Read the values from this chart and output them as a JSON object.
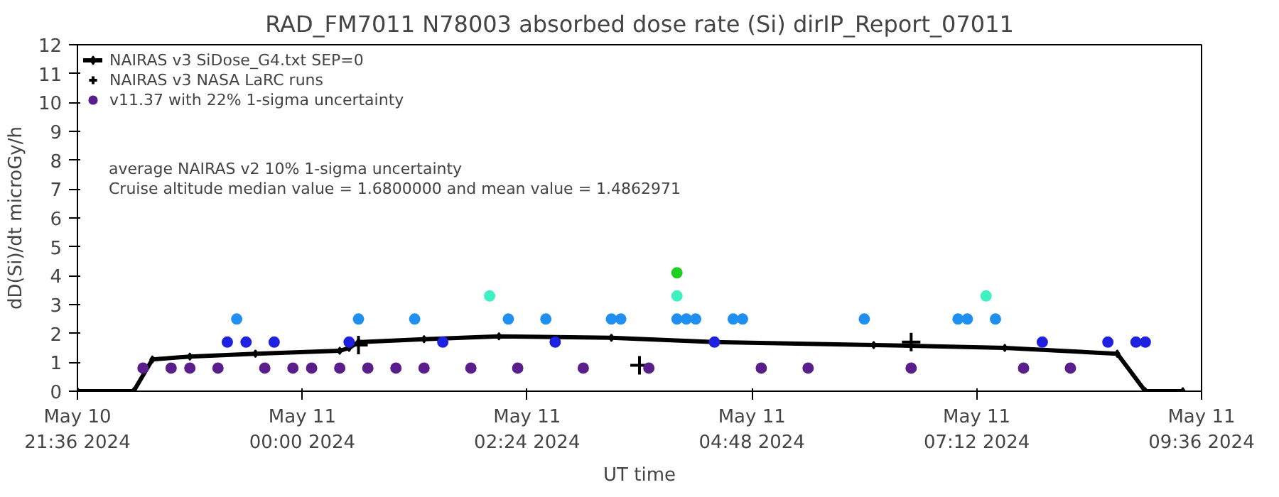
{
  "chart_data": {
    "type": "scatter",
    "title": "RAD_FM7011 N78003 absorbed dose rate (Si) dirIP_Report_07011",
    "xlabel": "UT time",
    "ylabel": "dD(Si)/dt microGy/h",
    "annotations": [
      "average NAIRAS v2 10% 1-sigma uncertainty",
      "Cruise altitude median value = 1.6800000 and mean value = 1.4862971"
    ],
    "xlim": [
      "2024-05-10T21:36",
      "2024-05-11T09:36"
    ],
    "xticks": [
      {
        "value": "2024-05-10T21:36",
        "label": "May 10\n21:36 2024"
      },
      {
        "value": "2024-05-11T00:00",
        "label": "May 11\n00:00 2024"
      },
      {
        "value": "2024-05-11T02:24",
        "label": "May 11\n02:24 2024"
      },
      {
        "value": "2024-05-11T04:48",
        "label": "May 11\n04:48 2024"
      },
      {
        "value": "2024-05-11T07:12",
        "label": "May 11\n07:12 2024"
      },
      {
        "value": "2024-05-11T09:36",
        "label": "May 11\n09:36 2024"
      }
    ],
    "ylim": [
      0,
      12
    ],
    "yticks": [
      0,
      1,
      2,
      3,
      4,
      5,
      6,
      7,
      8,
      9,
      10,
      11,
      12
    ],
    "grid": false,
    "legend": "top left",
    "series": [
      {
        "name": "NAIRAS v3 SiDose_G4.txt SEP=0",
        "type": "line",
        "marker": "diamond",
        "color": "#000000",
        "x": [
          "2024-05-10T21:36",
          "2024-05-10T22:12",
          "2024-05-10T22:24",
          "2024-05-10T22:48",
          "2024-05-10T23:30",
          "2024-05-11T00:24",
          "2024-05-11T00:30",
          "2024-05-11T00:36",
          "2024-05-11T01:18",
          "2024-05-11T02:06",
          "2024-05-11T03:18",
          "2024-05-11T04:24",
          "2024-05-11T06:06",
          "2024-05-11T07:30",
          "2024-05-11T08:42",
          "2024-05-11T09:00",
          "2024-05-11T09:24"
        ],
        "values": [
          0,
          0,
          1.1,
          1.2,
          1.3,
          1.4,
          1.5,
          1.7,
          1.8,
          1.9,
          1.85,
          1.7,
          1.6,
          1.5,
          1.3,
          0,
          0
        ]
      },
      {
        "name": "NAIRAS v3 NASA LaRC runs",
        "marker": "cross",
        "color": "#000000",
        "x": [
          "2024-05-11T00:36",
          "2024-05-11T03:36",
          "2024-05-11T06:30"
        ],
        "values": [
          1.6,
          0.9,
          1.7
        ]
      },
      {
        "name": "v11.37 with 22% 1-sigma uncertainty",
        "marker": "circle",
        "x": [
          "2024-05-10T22:18",
          "2024-05-10T22:36",
          "2024-05-10T22:48",
          "2024-05-10T23:06",
          "2024-05-10T23:12",
          "2024-05-10T23:18",
          "2024-05-10T23:24",
          "2024-05-10T23:36",
          "2024-05-10T23:42",
          "2024-05-10T23:54",
          "2024-05-11T00:06",
          "2024-05-11T00:24",
          "2024-05-11T00:30",
          "2024-05-11T00:36",
          "2024-05-11T00:42",
          "2024-05-11T01:00",
          "2024-05-11T01:12",
          "2024-05-11T01:18",
          "2024-05-11T01:30",
          "2024-05-11T01:48",
          "2024-05-11T02:00",
          "2024-05-11T02:12",
          "2024-05-11T02:18",
          "2024-05-11T02:36",
          "2024-05-11T02:42",
          "2024-05-11T03:00",
          "2024-05-11T03:18",
          "2024-05-11T03:24",
          "2024-05-11T03:42",
          "2024-05-11T04:00",
          "2024-05-11T04:00",
          "2024-05-11T04:00",
          "2024-05-11T04:06",
          "2024-05-11T04:12",
          "2024-05-11T04:24",
          "2024-05-11T04:36",
          "2024-05-11T04:42",
          "2024-05-11T04:54",
          "2024-05-11T05:24",
          "2024-05-11T06:00",
          "2024-05-11T06:30",
          "2024-05-11T07:00",
          "2024-05-11T07:06",
          "2024-05-11T07:18",
          "2024-05-11T07:24",
          "2024-05-11T07:42",
          "2024-05-11T07:54",
          "2024-05-11T08:12",
          "2024-05-11T08:36",
          "2024-05-11T08:54",
          "2024-05-11T09:00"
        ],
        "values": [
          0.8,
          0.8,
          0.8,
          0.8,
          1.7,
          2.5,
          1.7,
          0.8,
          1.7,
          0.8,
          0.8,
          0.8,
          1.7,
          2.5,
          0.8,
          0.8,
          2.5,
          0.8,
          1.7,
          0.8,
          3.3,
          2.5,
          0.8,
          2.5,
          1.7,
          0.8,
          2.5,
          2.5,
          0.8,
          2.5,
          3.3,
          4.1,
          2.5,
          2.5,
          1.7,
          2.5,
          2.5,
          0.8,
          0.8,
          2.5,
          0.8,
          2.5,
          2.5,
          3.3,
          2.5,
          0.8,
          1.7,
          0.8,
          1.7,
          1.7,
          1.7
        ],
        "colors": [
          "#5a1e8c",
          "#5a1e8c",
          "#5a1e8c",
          "#5a1e8c",
          "#2020e0",
          "#2090f0",
          "#2020e0",
          "#5a1e8c",
          "#2020e0",
          "#5a1e8c",
          "#5a1e8c",
          "#5a1e8c",
          "#2020e0",
          "#2090f0",
          "#5a1e8c",
          "#5a1e8c",
          "#2090f0",
          "#5a1e8c",
          "#2020e0",
          "#5a1e8c",
          "#40f0c0",
          "#2090f0",
          "#5a1e8c",
          "#2090f0",
          "#2020e0",
          "#5a1e8c",
          "#2090f0",
          "#2090f0",
          "#5a1e8c",
          "#2090f0",
          "#40f0c0",
          "#20d020",
          "#2090f0",
          "#2090f0",
          "#2020e0",
          "#2090f0",
          "#2090f0",
          "#5a1e8c",
          "#5a1e8c",
          "#2090f0",
          "#5a1e8c",
          "#2090f0",
          "#2090f0",
          "#40f0c0",
          "#2090f0",
          "#5a1e8c",
          "#2020e0",
          "#5a1e8c",
          "#2020e0",
          "#2020e0",
          "#2020e0"
        ]
      }
    ]
  }
}
